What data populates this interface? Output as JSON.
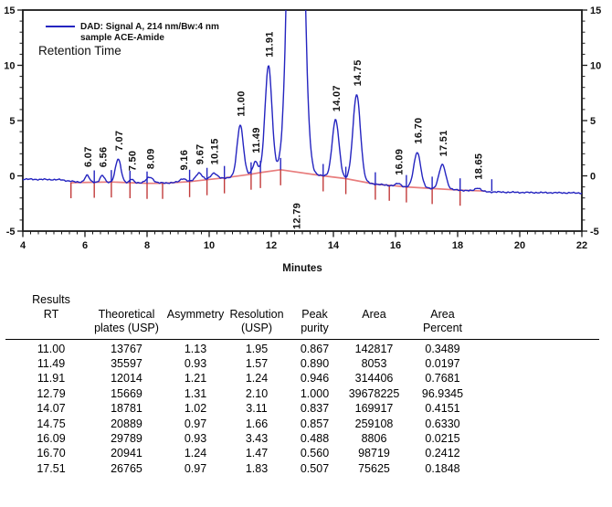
{
  "legend": {
    "line1": "DAD: Signal A, 214 nm/Bw:4 nm",
    "line2": "sample ACE-Amide",
    "retention_label": "Retention Time"
  },
  "chart_data": {
    "type": "line",
    "title": "",
    "xlabel": "Minutes",
    "ylabel": "",
    "xlim": [
      4,
      22
    ],
    "ylim": [
      -5,
      15
    ],
    "x_major_ticks": [
      4,
      6,
      8,
      10,
      12,
      14,
      16,
      18,
      20,
      22
    ],
    "y_major_ticks": [
      -5,
      0,
      5,
      10,
      15
    ],
    "x_minor_step": 0.25,
    "y_minor_step": 1,
    "grid": "off",
    "legend_position": "top-left",
    "trace_color": "#2424c0",
    "baseline_color": "#e87d7d",
    "marker_red_color": "#c23b3b",
    "axis_color": "#1a1a1a",
    "noise_amp": 0.07,
    "peaks": [
      {
        "rt": 6.07,
        "h": 0.6,
        "sigma": 0.07,
        "label": "6.07"
      },
      {
        "rt": 6.56,
        "h": 0.6,
        "sigma": 0.07,
        "label": "6.56"
      },
      {
        "rt": 7.07,
        "h": 2.1,
        "sigma": 0.09,
        "label": "7.07"
      },
      {
        "rt": 7.5,
        "h": 0.3,
        "sigma": 0.06,
        "label": "7.50"
      },
      {
        "rt": 8.09,
        "h": 0.5,
        "sigma": 0.11,
        "label": "8.09"
      },
      {
        "rt": 9.16,
        "h": 0.3,
        "sigma": 0.09,
        "label": "9.16"
      },
      {
        "rt": 9.67,
        "h": 0.7,
        "sigma": 0.1,
        "label": "9.67"
      },
      {
        "rt": 10.15,
        "h": 0.55,
        "sigma": 0.1,
        "label": "10.15"
      },
      {
        "rt": 11.0,
        "h": 4.6,
        "sigma": 0.1,
        "label": "11.00"
      },
      {
        "rt": 11.49,
        "h": 1.1,
        "sigma": 0.08,
        "label": "11.49"
      },
      {
        "rt": 11.91,
        "h": 9.6,
        "sigma": 0.11,
        "label": "11.91"
      },
      {
        "rt": 12.79,
        "h": 60,
        "sigma": 0.19,
        "label": "12.79",
        "label_below": true
      },
      {
        "rt": 14.07,
        "h": 5.2,
        "sigma": 0.11,
        "label": "14.07"
      },
      {
        "rt": 14.75,
        "h": 7.8,
        "sigma": 0.12,
        "label": "14.75"
      },
      {
        "rt": 16.09,
        "h": 0.25,
        "sigma": 0.08,
        "label": "16.09"
      },
      {
        "rt": 16.7,
        "h": 3.2,
        "sigma": 0.11,
        "label": "16.70"
      },
      {
        "rt": 17.51,
        "h": 2.2,
        "sigma": 0.11,
        "label": "17.51"
      },
      {
        "rt": 18.65,
        "h": 0.3,
        "sigma": 0.09,
        "label": "18.65"
      }
    ],
    "signal_anchors": [
      [
        4,
        -0.3
      ],
      [
        5.2,
        -0.35
      ],
      [
        5.7,
        -0.55
      ],
      [
        7.2,
        -0.6
      ],
      [
        8.6,
        -0.65
      ],
      [
        9.4,
        -0.5
      ],
      [
        10.5,
        -0.2
      ],
      [
        11.35,
        0.15
      ],
      [
        12.3,
        0.55
      ],
      [
        13.67,
        0.0
      ],
      [
        14.4,
        -0.25
      ],
      [
        15.35,
        -0.75
      ],
      [
        16.35,
        -1.0
      ],
      [
        17.2,
        -1.15
      ],
      [
        18.1,
        -1.3
      ],
      [
        19.0,
        -1.45
      ],
      [
        20.0,
        -1.5
      ],
      [
        22.0,
        -1.55
      ]
    ],
    "baseline_anchors": [
      [
        5.55,
        -0.62
      ],
      [
        6.3,
        -0.58
      ],
      [
        6.85,
        -0.55
      ],
      [
        7.45,
        -0.62
      ],
      [
        8.0,
        -0.68
      ],
      [
        8.5,
        -0.68
      ],
      [
        9.37,
        -0.52
      ],
      [
        9.93,
        -0.35
      ],
      [
        10.49,
        -0.18
      ],
      [
        11.35,
        0.15
      ],
      [
        11.65,
        0.3
      ],
      [
        12.3,
        0.55
      ],
      [
        13.67,
        0.0
      ],
      [
        14.4,
        -0.25
      ],
      [
        15.35,
        -0.75
      ],
      [
        15.8,
        -0.85
      ],
      [
        16.35,
        -1.0
      ],
      [
        17.2,
        -1.15
      ],
      [
        18.1,
        -1.3
      ],
      [
        18.9,
        -1.38
      ]
    ],
    "integration_markers": [
      {
        "t": 5.55,
        "red": true,
        "blue": false
      },
      {
        "t": 6.3,
        "red": true,
        "blue": true
      },
      {
        "t": 6.85,
        "red": true,
        "blue": true
      },
      {
        "t": 7.45,
        "red": true,
        "blue": true
      },
      {
        "t": 8.0,
        "red": true,
        "blue": true
      },
      {
        "t": 8.5,
        "red": true,
        "blue": false
      },
      {
        "t": 9.37,
        "red": true,
        "blue": true
      },
      {
        "t": 9.93,
        "red": true,
        "blue": true
      },
      {
        "t": 10.49,
        "red": true,
        "blue": true
      },
      {
        "t": 11.35,
        "red": true,
        "blue": true
      },
      {
        "t": 11.65,
        "red": true,
        "blue": true
      },
      {
        "t": 12.3,
        "red": true,
        "blue": true
      },
      {
        "t": 13.67,
        "red": true,
        "blue": true
      },
      {
        "t": 14.4,
        "red": true,
        "blue": true
      },
      {
        "t": 15.35,
        "red": true,
        "blue": true
      },
      {
        "t": 15.8,
        "red": true,
        "blue": false
      },
      {
        "t": 16.35,
        "red": true,
        "blue": true
      },
      {
        "t": 17.18,
        "red": true,
        "blue": true
      },
      {
        "t": 18.08,
        "red": true,
        "blue": true
      },
      {
        "t": 19.1,
        "red": false,
        "blue": true
      }
    ]
  },
  "table": {
    "title": "Results",
    "columns": [
      {
        "l0": "Results",
        "l1": "RT",
        "l2": ""
      },
      {
        "l0": "",
        "l1": "Theoretical",
        "l2": "plates (USP)"
      },
      {
        "l0": "",
        "l1": "Asymmetry",
        "l2": ""
      },
      {
        "l0": "",
        "l1": "Resolution",
        "l2": "(USP)"
      },
      {
        "l0": "",
        "l1": "Peak",
        "l2": "purity"
      },
      {
        "l0": "",
        "l1": "Area",
        "l2": ""
      },
      {
        "l0": "",
        "l1": "Area",
        "l2": "Percent"
      }
    ],
    "rows": [
      [
        "11.00",
        "13767",
        "1.13",
        "1.95",
        "0.867",
        "142817",
        "0.3489"
      ],
      [
        "11.49",
        "35597",
        "0.93",
        "1.57",
        "0.890",
        "8053",
        "0.0197"
      ],
      [
        "11.91",
        "12014",
        "1.21",
        "1.24",
        "0.946",
        "314406",
        "0.7681"
      ],
      [
        "12.79",
        "15669",
        "1.31",
        "2.10",
        "1.000",
        "39678225",
        "96.9345"
      ],
      [
        "14.07",
        "18781",
        "1.02",
        "3.11",
        "0.837",
        "169917",
        "0.4151"
      ],
      [
        "14.75",
        "20889",
        "0.97",
        "1.66",
        "0.857",
        "259108",
        "0.6330"
      ],
      [
        "16.09",
        "29789",
        "0.93",
        "3.43",
        "0.488",
        "8806",
        "0.0215"
      ],
      [
        "16.70",
        "20941",
        "1.24",
        "1.47",
        "0.560",
        "98719",
        "0.2412"
      ],
      [
        "17.51",
        "26765",
        "0.97",
        "1.83",
        "0.507",
        "75625",
        "0.1848"
      ]
    ]
  }
}
